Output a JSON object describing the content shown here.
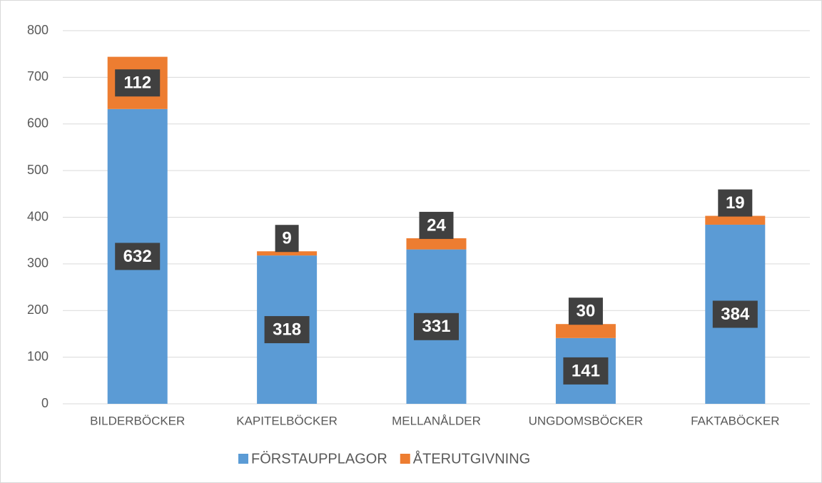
{
  "chart_data": {
    "type": "stacked_bar",
    "categories": [
      "BILDERBÖCKER",
      "KAPITELBÖCKER",
      "MELLANÅLDER",
      "UNGDOMSBÖCKER",
      "FAKTABÖCKER"
    ],
    "series": [
      {
        "name": "FÖRSTAUPPLAGOR",
        "color": "#5b9bd5",
        "values": [
          632,
          318,
          331,
          141,
          384
        ]
      },
      {
        "name": "ÅTERUTGIVNING",
        "color": "#ed7d31",
        "values": [
          112,
          9,
          24,
          30,
          19
        ]
      }
    ],
    "ylim": [
      0,
      800
    ],
    "yticks": [
      0,
      100,
      200,
      300,
      400,
      500,
      600,
      700,
      800
    ],
    "grid": true,
    "legend": "bottom"
  }
}
